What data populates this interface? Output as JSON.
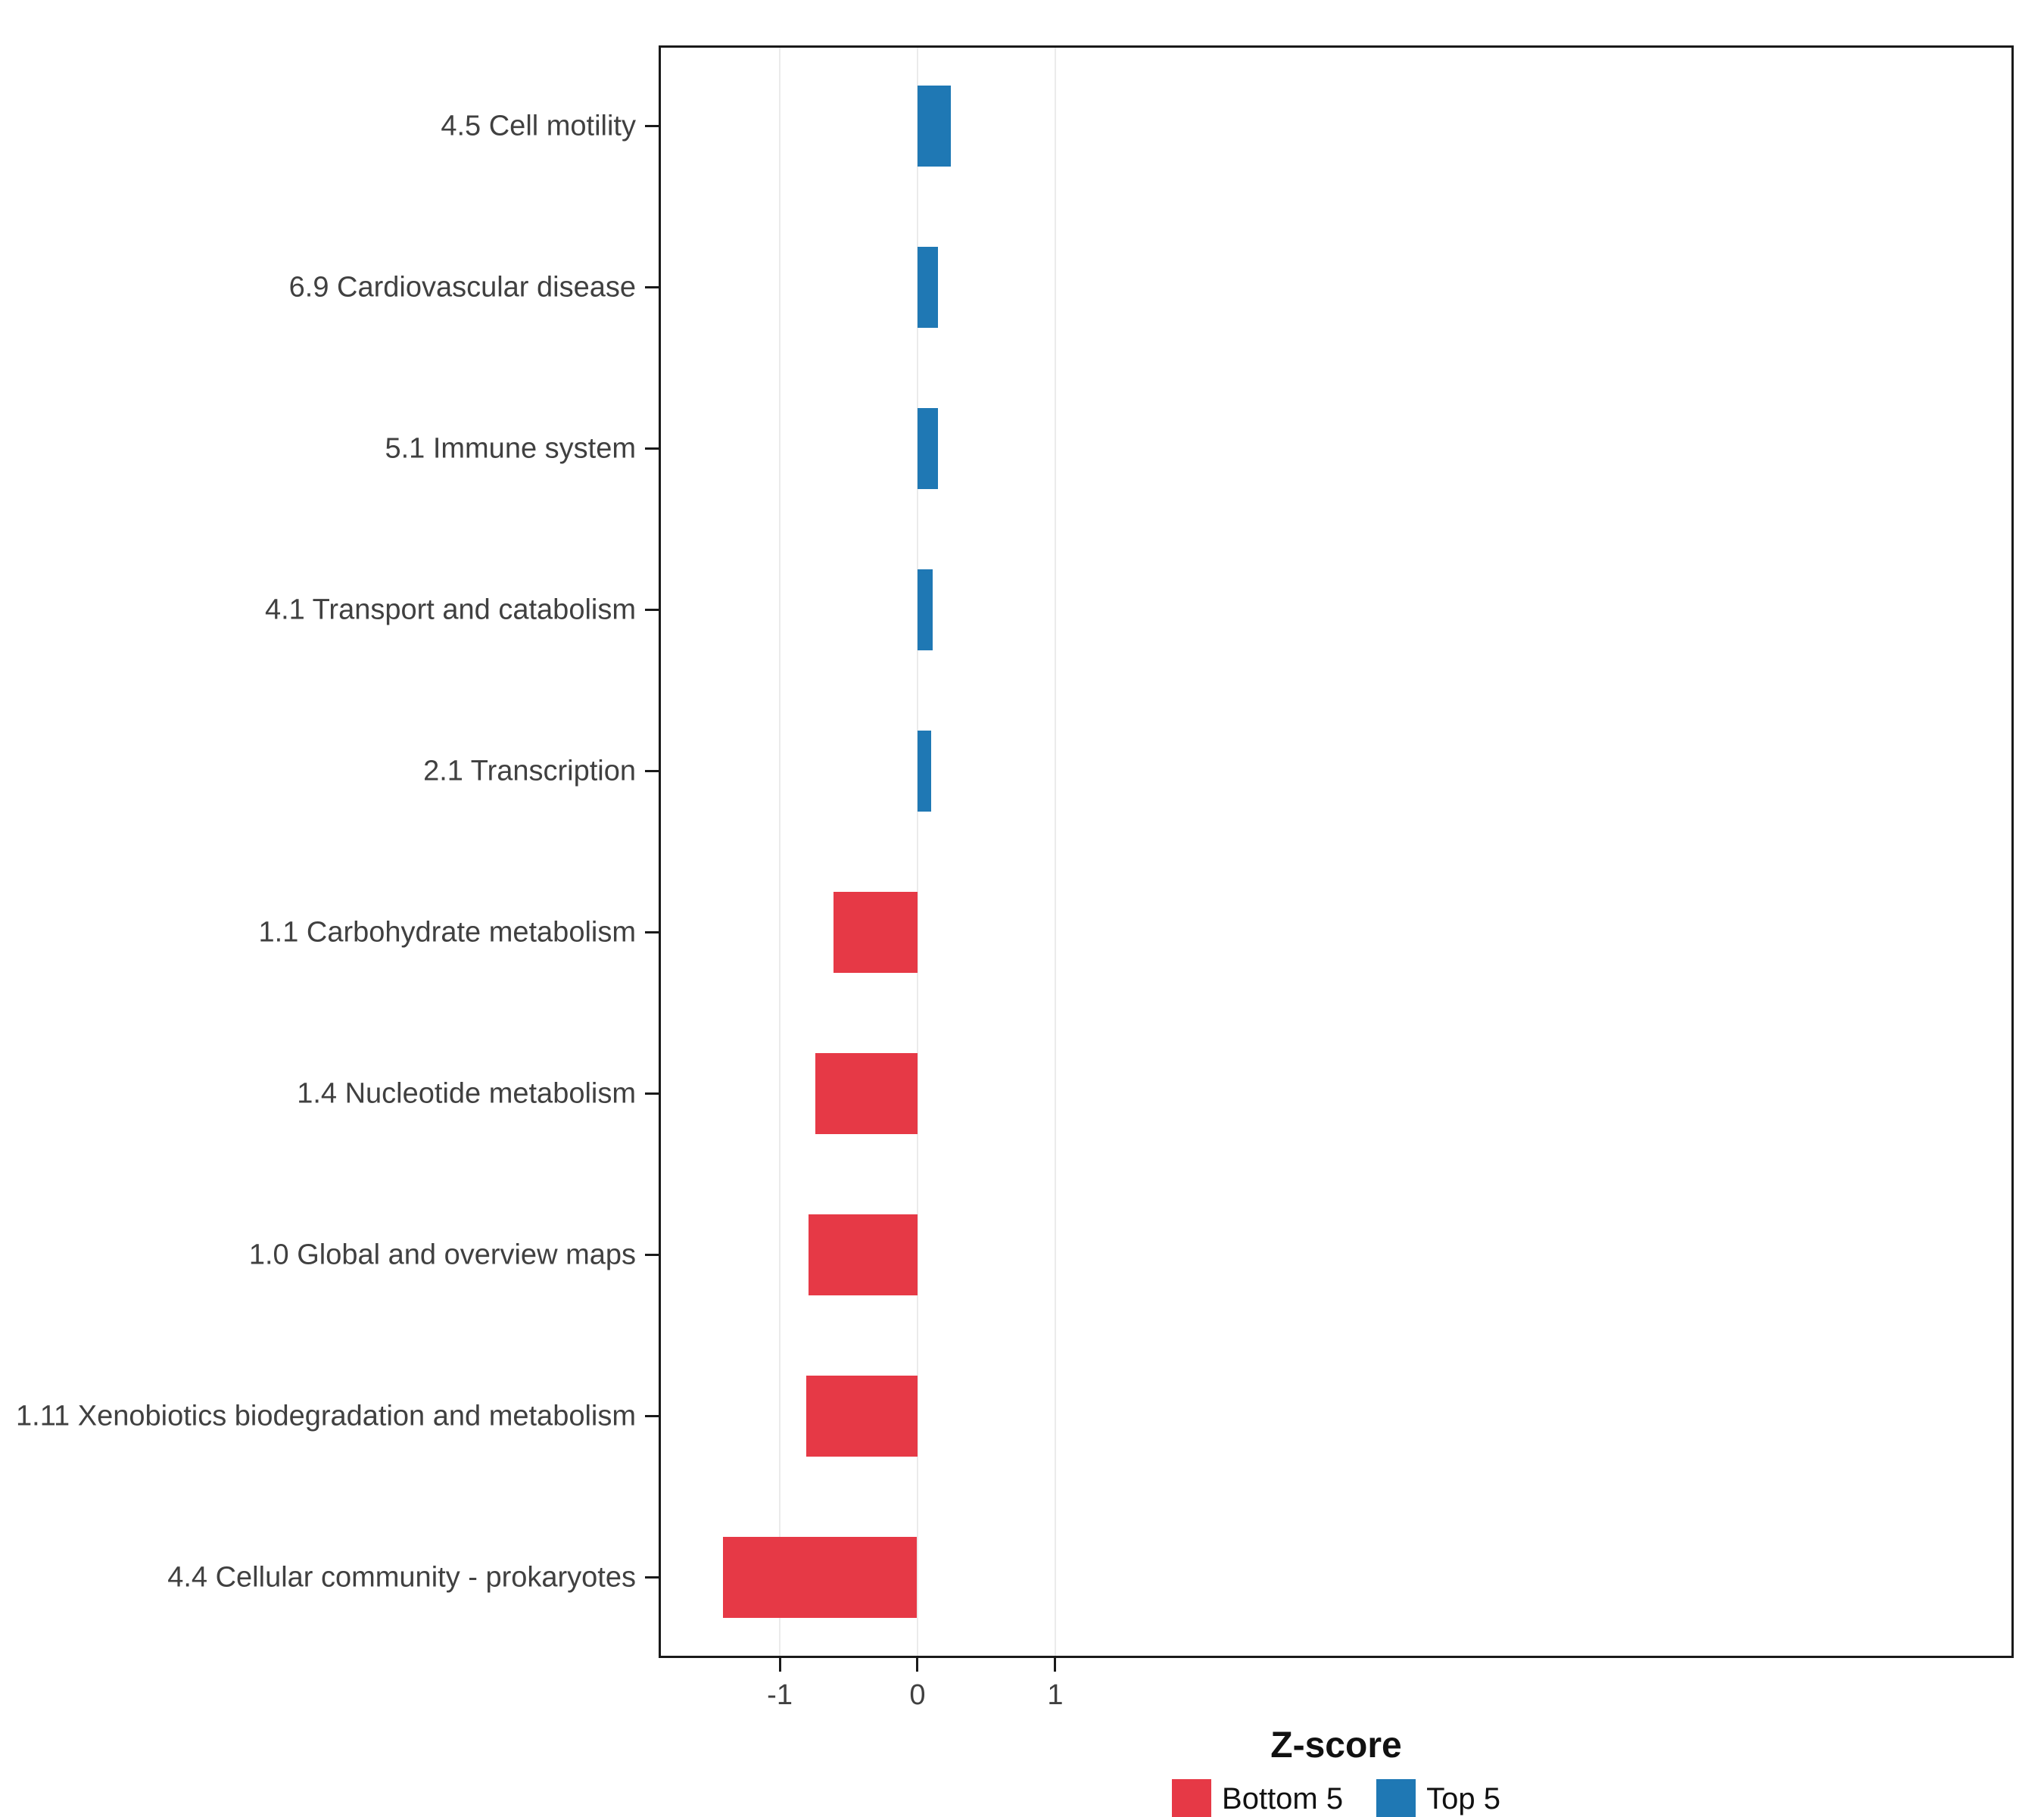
{
  "chart_data": {
    "type": "bar",
    "orientation": "horizontal",
    "title": "",
    "xlabel": "Z-score",
    "ylabel": "",
    "categories": [
      "4.5 Cell motility",
      "6.9 Cardiovascular disease",
      "5.1 Immune system",
      "4.1 Transport and catabolism",
      "2.1 Transcription",
      "1.1 Carbohydrate metabolism",
      "1.4 Nucleotide metabolism",
      "1.0 Global and overview maps",
      "1.11 Xenobiotics biodegradation and metabolism",
      "4.4 Cellular community - prokaryotes"
    ],
    "values": [
      0.24,
      0.15,
      0.15,
      0.11,
      0.1,
      -0.61,
      -0.74,
      -0.79,
      -0.81,
      -1.41
    ],
    "groups": [
      "Top 5",
      "Top 5",
      "Top 5",
      "Top 5",
      "Top 5",
      "Bottom 5",
      "Bottom 5",
      "Bottom 5",
      "Bottom 5",
      "Bottom 5"
    ],
    "group_colors": {
      "Top 5": "#1F78B4",
      "Bottom 5": "#E63946"
    },
    "x_ticks": [
      -1,
      0,
      1
    ],
    "x_tick_labels": [
      "-1",
      "0",
      "1"
    ],
    "xlim": [
      -1.88,
      7.96
    ],
    "grid": true,
    "legend": {
      "position": "bottom",
      "items": [
        {
          "label": "Bottom 5",
          "color": "#E63946"
        },
        {
          "label": "Top 5",
          "color": "#1F78B4"
        }
      ]
    }
  }
}
